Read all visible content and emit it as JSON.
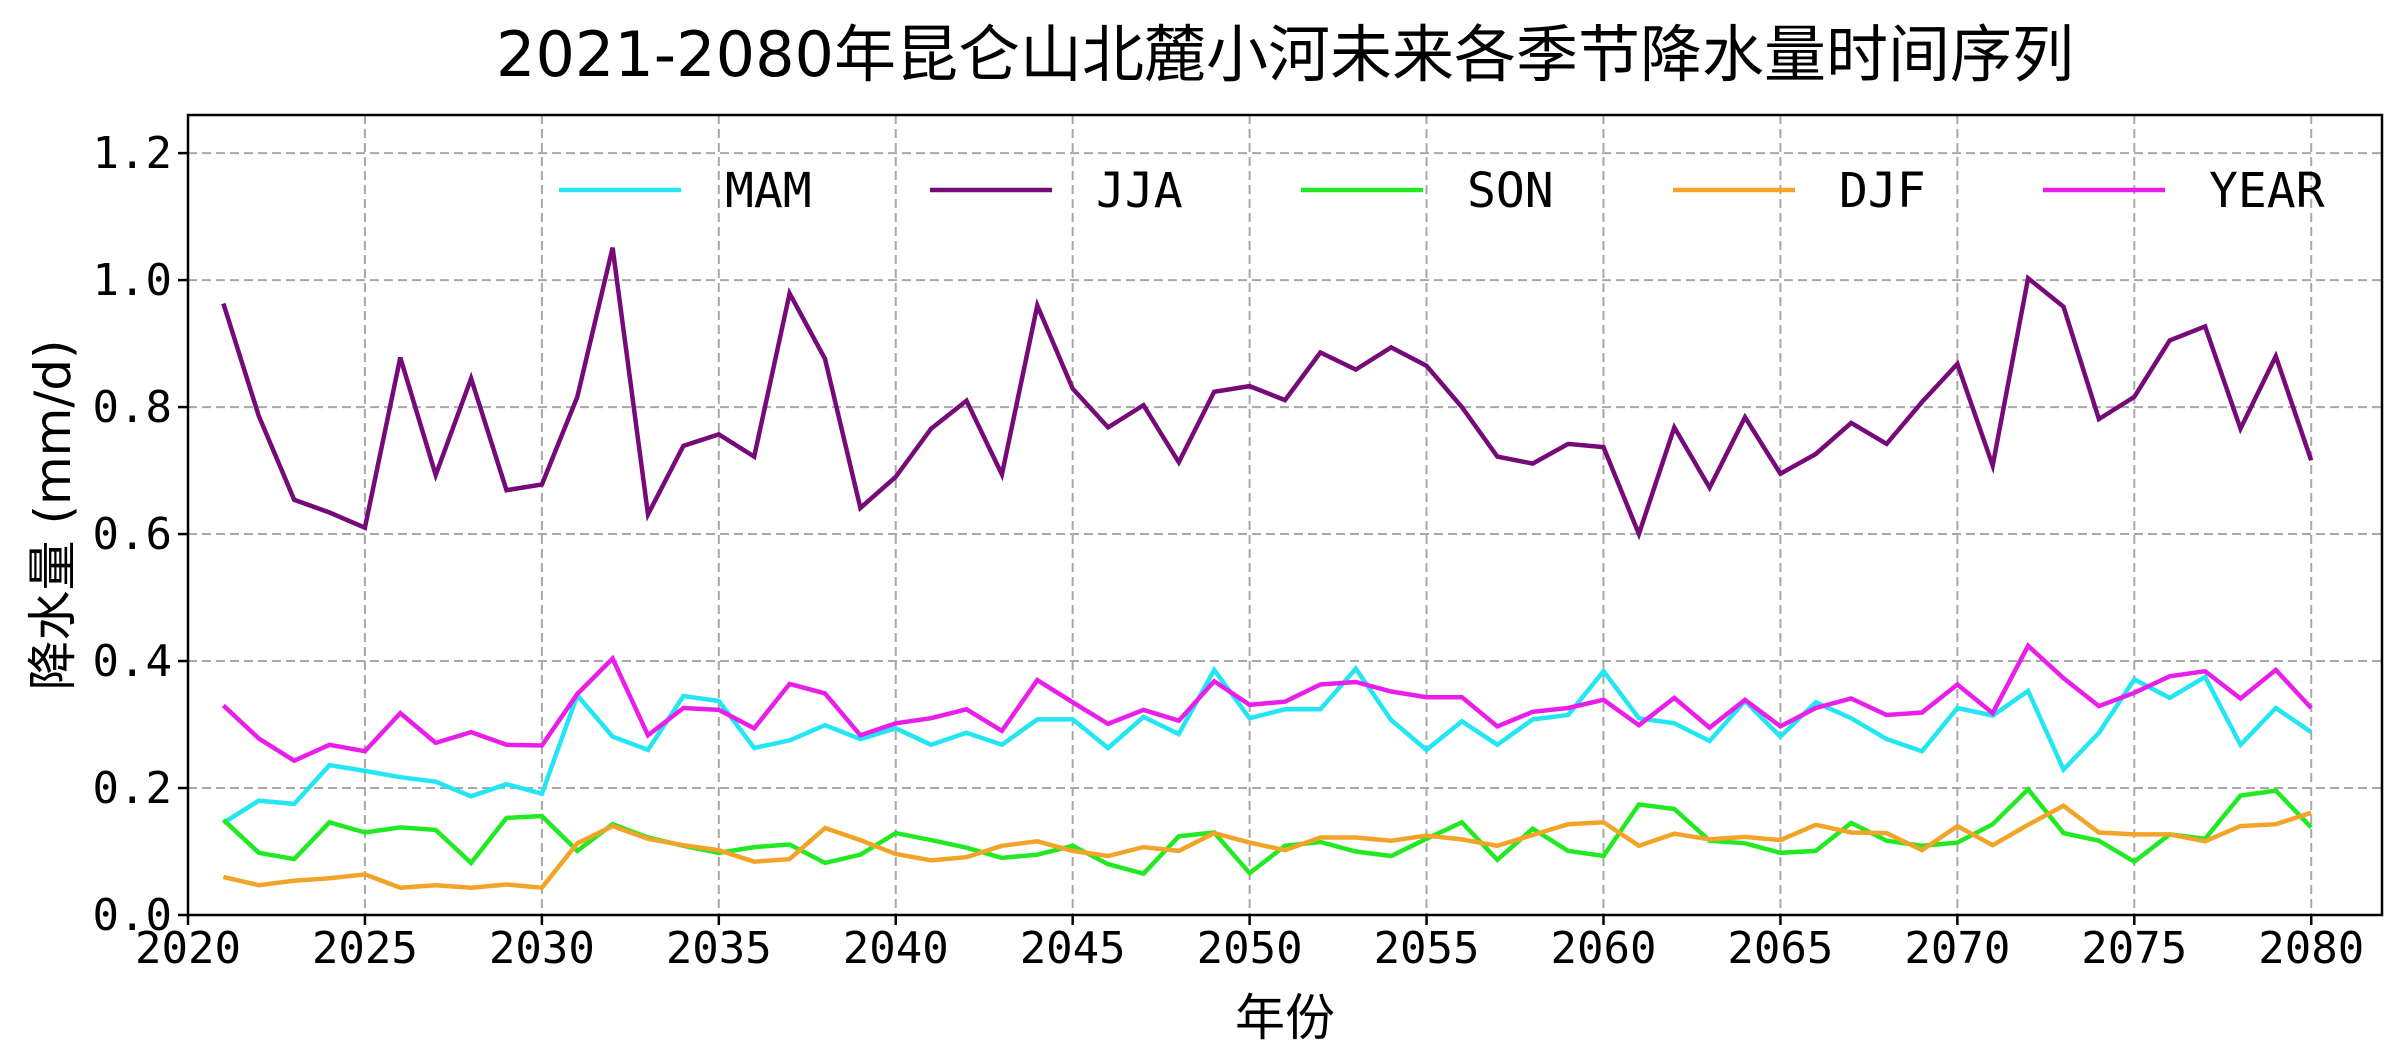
{
  "chart_data": {
    "type": "line",
    "title": "2021-2080年昆仑山北麓小河未来各季节降水量时间序列",
    "xlabel": "年份",
    "ylabel": "降水量 (mm/d)",
    "xlim": [
      2020,
      2082
    ],
    "ylim": [
      0,
      1.26
    ],
    "xticks": [
      "2020",
      "2025",
      "2030",
      "2035",
      "2040",
      "2045",
      "2050",
      "2055",
      "2060",
      "2065",
      "2070",
      "2075",
      "2080"
    ],
    "yticks": [
      "0.0",
      "0.2",
      "0.4",
      "0.6",
      "0.8",
      "1.0",
      "1.2"
    ],
    "grid": true,
    "legend_position": "top",
    "x": [
      2021,
      2022,
      2023,
      2024,
      2025,
      2026,
      2027,
      2028,
      2029,
      2030,
      2031,
      2032,
      2033,
      2034,
      2035,
      2036,
      2037,
      2038,
      2039,
      2040,
      2041,
      2042,
      2043,
      2044,
      2045,
      2046,
      2047,
      2048,
      2049,
      2050,
      2051,
      2052,
      2053,
      2054,
      2055,
      2056,
      2057,
      2058,
      2059,
      2060,
      2061,
      2062,
      2063,
      2064,
      2065,
      2066,
      2067,
      2068,
      2069,
      2070,
      2071,
      2072,
      2073,
      2074,
      2075,
      2076,
      2077,
      2078,
      2079,
      2080
    ],
    "series": [
      {
        "name": "MAM",
        "color": "#22e6f2",
        "values": [
          0.145,
          0.18,
          0.175,
          0.236,
          0.227,
          0.217,
          0.21,
          0.187,
          0.206,
          0.191,
          0.346,
          0.281,
          0.26,
          0.345,
          0.337,
          0.263,
          0.275,
          0.299,
          0.277,
          0.294,
          0.268,
          0.287,
          0.268,
          0.308,
          0.308,
          0.263,
          0.312,
          0.285,
          0.386,
          0.31,
          0.324,
          0.324,
          0.388,
          0.307,
          0.26,
          0.305,
          0.268,
          0.308,
          0.315,
          0.384,
          0.31,
          0.302,
          0.274,
          0.337,
          0.281,
          0.335,
          0.31,
          0.277,
          0.258,
          0.326,
          0.314,
          0.353,
          0.229,
          0.287,
          0.371,
          0.342,
          0.375,
          0.268,
          0.326,
          0.288
        ]
      },
      {
        "name": "JJA",
        "color": "#750a78",
        "values": [
          0.963,
          0.786,
          0.654,
          0.634,
          0.61,
          0.878,
          0.693,
          0.845,
          0.669,
          0.678,
          0.816,
          1.051,
          0.631,
          0.739,
          0.757,
          0.722,
          0.979,
          0.876,
          0.641,
          0.69,
          0.766,
          0.81,
          0.694,
          0.96,
          0.829,
          0.768,
          0.803,
          0.713,
          0.824,
          0.833,
          0.811,
          0.886,
          0.859,
          0.894,
          0.865,
          0.8,
          0.722,
          0.711,
          0.742,
          0.737,
          0.6,
          0.768,
          0.673,
          0.784,
          0.695,
          0.726,
          0.775,
          0.742,
          0.808,
          0.868,
          0.708,
          1.003,
          0.958,
          0.781,
          0.816,
          0.905,
          0.927,
          0.766,
          0.88,
          0.716
        ]
      },
      {
        "name": "SON",
        "color": "#22ea22",
        "values": [
          0.15,
          0.098,
          0.088,
          0.146,
          0.13,
          0.138,
          0.134,
          0.082,
          0.153,
          0.156,
          0.101,
          0.143,
          0.122,
          0.109,
          0.098,
          0.107,
          0.111,
          0.082,
          0.095,
          0.129,
          0.118,
          0.106,
          0.09,
          0.095,
          0.109,
          0.08,
          0.065,
          0.124,
          0.13,
          0.066,
          0.109,
          0.115,
          0.1,
          0.093,
          0.12,
          0.146,
          0.087,
          0.136,
          0.101,
          0.093,
          0.174,
          0.167,
          0.117,
          0.113,
          0.098,
          0.101,
          0.145,
          0.117,
          0.109,
          0.114,
          0.143,
          0.198,
          0.129,
          0.117,
          0.084,
          0.127,
          0.12,
          0.188,
          0.196,
          0.138
        ]
      },
      {
        "name": "DJF",
        "color": "#f2a428",
        "values": [
          0.06,
          0.047,
          0.054,
          0.058,
          0.064,
          0.043,
          0.047,
          0.043,
          0.048,
          0.043,
          0.113,
          0.14,
          0.12,
          0.11,
          0.102,
          0.084,
          0.088,
          0.137,
          0.118,
          0.096,
          0.086,
          0.091,
          0.109,
          0.116,
          0.101,
          0.093,
          0.107,
          0.101,
          0.129,
          0.114,
          0.102,
          0.122,
          0.122,
          0.117,
          0.125,
          0.119,
          0.109,
          0.126,
          0.143,
          0.146,
          0.109,
          0.128,
          0.119,
          0.123,
          0.118,
          0.142,
          0.13,
          0.129,
          0.102,
          0.14,
          0.11,
          0.142,
          0.172,
          0.13,
          0.127,
          0.127,
          0.116,
          0.14,
          0.143,
          0.161
        ]
      },
      {
        "name": "YEAR",
        "color": "#ea1eea",
        "values": [
          0.33,
          0.278,
          0.243,
          0.268,
          0.258,
          0.318,
          0.271,
          0.288,
          0.268,
          0.267,
          0.348,
          0.404,
          0.283,
          0.326,
          0.323,
          0.294,
          0.364,
          0.349,
          0.283,
          0.302,
          0.31,
          0.324,
          0.29,
          0.37,
          0.335,
          0.301,
          0.323,
          0.306,
          0.368,
          0.331,
          0.336,
          0.363,
          0.367,
          0.352,
          0.343,
          0.343,
          0.297,
          0.32,
          0.326,
          0.339,
          0.299,
          0.342,
          0.295,
          0.339,
          0.297,
          0.326,
          0.341,
          0.315,
          0.319,
          0.363,
          0.318,
          0.424,
          0.373,
          0.329,
          0.35,
          0.376,
          0.384,
          0.341,
          0.386,
          0.326
        ]
      }
    ]
  }
}
